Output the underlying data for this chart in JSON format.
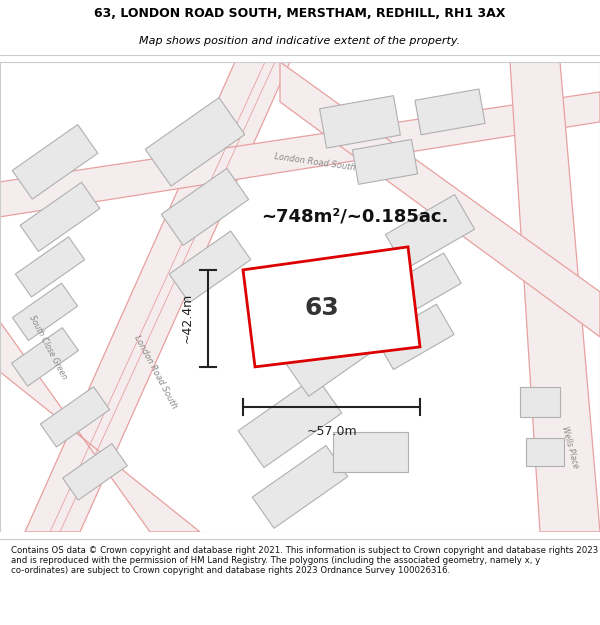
{
  "title_line1": "63, LONDON ROAD SOUTH, MERSTHAM, REDHILL, RH1 3AX",
  "title_line2": "Map shows position and indicative extent of the property.",
  "area_text": "~748m²/~0.185ac.",
  "plot_number": "63",
  "dim_width": "~57.0m",
  "dim_height": "~42.4m",
  "footer": "Contains OS data © Crown copyright and database right 2021. This information is subject to Crown copyright and database rights 2023 and is reproduced with the permission of HM Land Registry. The polygons (including the associated geometry, namely x, y co-ordinates) are subject to Crown copyright and database rights 2023 Ordnance Survey 100026316.",
  "bg_color": "#ffffff",
  "map_bg": "#f8f8f8",
  "building_fill": "#e8e8e8",
  "building_edge": "#b0b0b0",
  "road_line_color": "#e8a0a0",
  "road_fill_color": "#f5e8e8",
  "plot_fill": "#ffffff",
  "plot_edge_color": "#dd0000",
  "dim_color": "#222222",
  "label_color": "#888888",
  "title_color": "#000000",
  "footer_color": "#111111"
}
